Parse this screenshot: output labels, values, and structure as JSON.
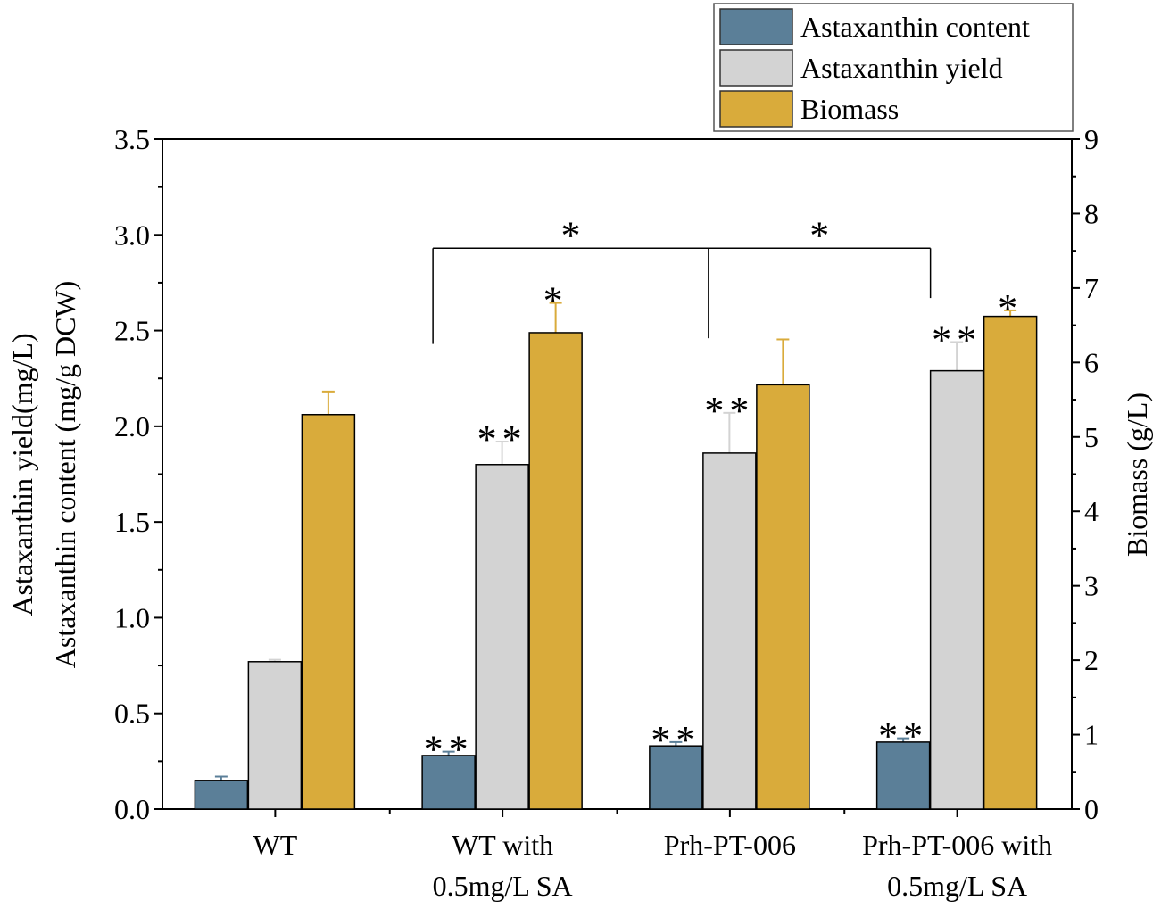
{
  "chart_data": {
    "type": "bar",
    "categories": [
      "WT",
      "WT with\n0.5mg/L SA",
      "Prh-PT-006",
      "Prh-PT-006 with\n0.5mg/L SA"
    ],
    "series": [
      {
        "name": "Astaxanthin content",
        "axis": "left",
        "color": "#5b7f98",
        "values": [
          0.15,
          0.28,
          0.33,
          0.35
        ],
        "errors": [
          0.02,
          0.02,
          0.02,
          0.02
        ],
        "error_color": "#5b7f98"
      },
      {
        "name": "Astaxanthin yield",
        "axis": "left",
        "color": "#d3d3d3",
        "values": [
          0.77,
          1.8,
          1.86,
          2.29
        ],
        "errors": [
          0.01,
          0.12,
          0.21,
          0.15
        ],
        "error_color": "#d3d3d3"
      },
      {
        "name": "Biomass",
        "axis": "right",
        "color": "#d9ab3b",
        "values": [
          5.3,
          6.4,
          5.7,
          6.62
        ],
        "errors": [
          0.31,
          0.4,
          0.61,
          0.08
        ],
        "error_color": "#d9ab3b"
      }
    ],
    "ylabel_left": [
      "Astaxanthin yield(mg/L)",
      "Astaxanthin content (mg/g DCW)"
    ],
    "ylabel_right": "Biomass (g/L)",
    "ylim_left": [
      0,
      3.5
    ],
    "yticks_left": [
      "0.0",
      "0.5",
      "1.0",
      "1.5",
      "2.0",
      "2.5",
      "3.0",
      "3.5"
    ],
    "ylim_right": [
      0,
      9
    ],
    "yticks_right": [
      "0",
      "1",
      "2",
      "3",
      "4",
      "5",
      "6",
      "7",
      "8",
      "9"
    ],
    "grid": false,
    "legend_position": "top-right",
    "annotations": [
      {
        "group": 1,
        "series": 0,
        "text": "**"
      },
      {
        "group": 2,
        "series": 0,
        "text": "**"
      },
      {
        "group": 3,
        "series": 0,
        "text": "**"
      },
      {
        "group": 1,
        "series": 1,
        "text": "**"
      },
      {
        "group": 2,
        "series": 1,
        "text": "**"
      },
      {
        "group": 3,
        "series": 1,
        "text": "**"
      },
      {
        "group": 1,
        "series": 2,
        "text": "*"
      },
      {
        "group": 3,
        "series": 2,
        "text": "*"
      }
    ],
    "bracket": {
      "y": 2.93,
      "legs": [
        {
          "group": 1,
          "series": 0.2,
          "to": 2.43
        },
        {
          "group": 2,
          "series": 1.1,
          "to": 2.46
        },
        {
          "group": 3,
          "series": 1,
          "to": 2.67
        }
      ],
      "labels": [
        "*",
        "*"
      ]
    }
  }
}
